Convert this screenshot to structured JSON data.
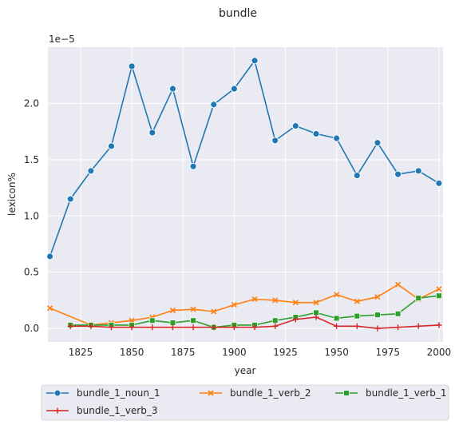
{
  "chart_data": {
    "type": "line",
    "title": "bundle",
    "xlabel": "year",
    "ylabel": "lexicon%",
    "y_multiplier_label": "1e−5",
    "xlim": [
      1809,
      2002
    ],
    "ylim": [
      -0.12,
      2.5
    ],
    "x_ticks": [
      1825,
      1850,
      1875,
      1900,
      1925,
      1950,
      1975,
      2000
    ],
    "y_ticks": [
      0.0,
      0.5,
      1.0,
      1.5,
      2.0
    ],
    "y_tick_labels": [
      "0.0",
      "0.5",
      "1.0",
      "1.5",
      "2.0"
    ],
    "grid": true,
    "legend_position": "bottom",
    "series": [
      {
        "name": "bundle_1_noun_1",
        "color": "#1f77b4",
        "marker": "circle",
        "x": [
          1810,
          1820,
          1830,
          1840,
          1850,
          1860,
          1870,
          1880,
          1890,
          1900,
          1910,
          1920,
          1930,
          1940,
          1950,
          1960,
          1970,
          1980,
          1990,
          2000
        ],
        "y": [
          0.64,
          1.15,
          1.4,
          1.62,
          2.33,
          1.74,
          2.13,
          1.44,
          1.99,
          2.13,
          2.38,
          1.67,
          1.8,
          1.73,
          1.69,
          1.36,
          1.65,
          1.37,
          1.4,
          1.29
        ]
      },
      {
        "name": "bundle_1_verb_2",
        "color": "#ff7f0e",
        "marker": "x",
        "x": [
          1810,
          1830,
          1840,
          1850,
          1860,
          1870,
          1880,
          1890,
          1900,
          1910,
          1920,
          1930,
          1940,
          1950,
          1960,
          1970,
          1980,
          1990,
          2000
        ],
        "y": [
          0.18,
          0.03,
          0.05,
          0.07,
          0.1,
          0.16,
          0.17,
          0.15,
          0.21,
          0.26,
          0.25,
          0.23,
          0.23,
          0.3,
          0.24,
          0.28,
          0.39,
          0.26,
          0.35
        ]
      },
      {
        "name": "bundle_1_verb_1",
        "color": "#2ca02c",
        "marker": "square",
        "x": [
          1820,
          1830,
          1840,
          1850,
          1860,
          1870,
          1880,
          1890,
          1900,
          1910,
          1920,
          1930,
          1940,
          1950,
          1960,
          1970,
          1980,
          1990,
          2000
        ],
        "y": [
          0.03,
          0.03,
          0.03,
          0.03,
          0.07,
          0.05,
          0.07,
          0.01,
          0.03,
          0.03,
          0.07,
          0.1,
          0.14,
          0.09,
          0.11,
          0.12,
          0.13,
          0.27,
          0.29
        ]
      },
      {
        "name": "bundle_1_verb_3",
        "color": "#d62728",
        "marker": "plus",
        "x": [
          1820,
          1830,
          1840,
          1850,
          1860,
          1870,
          1880,
          1890,
          1900,
          1910,
          1920,
          1930,
          1940,
          1950,
          1960,
          1970,
          1980,
          1990,
          2000
        ],
        "y": [
          0.02,
          0.02,
          0.01,
          0.01,
          0.01,
          0.01,
          0.01,
          0.01,
          0.01,
          0.01,
          0.02,
          0.08,
          0.1,
          0.02,
          0.02,
          0.0,
          0.01,
          0.02,
          0.03
        ]
      }
    ]
  }
}
